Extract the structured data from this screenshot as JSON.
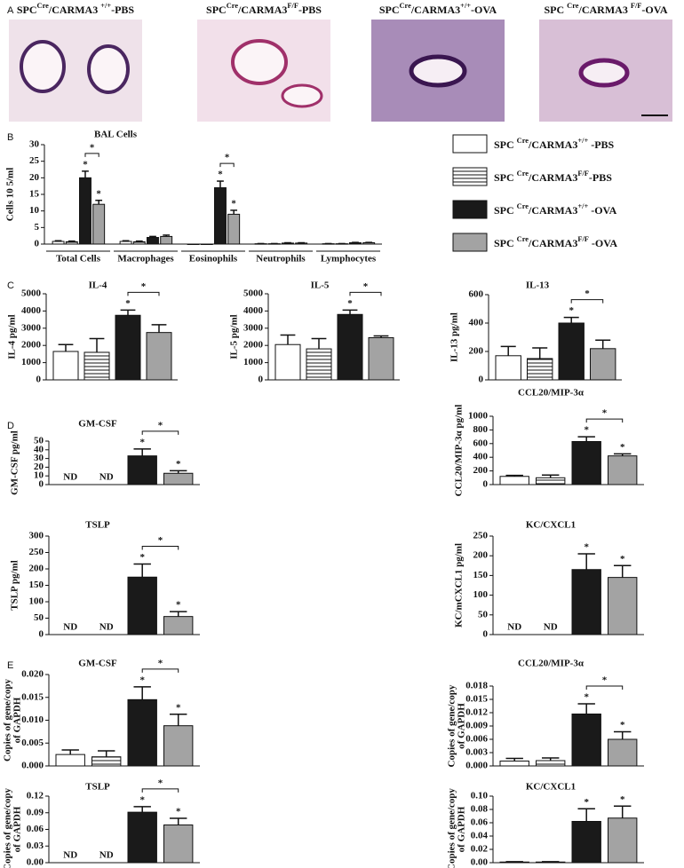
{
  "panels": [
    "A",
    "B",
    "C",
    "D",
    "E"
  ],
  "images": [
    {
      "caption_parts": [
        "SPC",
        "Cre",
        "/CARMA3 ",
        "+/+",
        "-PBS"
      ]
    },
    {
      "caption_parts": [
        "SPC",
        "Cre",
        "/CARMA3",
        "F/F",
        "-PBS"
      ]
    },
    {
      "caption_parts": [
        "SPC",
        "Cre",
        "/CARMA3",
        "+/+",
        "-OVA"
      ]
    },
    {
      "caption_parts": [
        "SPC ",
        "Cre",
        "/CARMA3 ",
        "F/F",
        "-OVA"
      ]
    }
  ],
  "legend": [
    {
      "name_parts": [
        "SPC ",
        "Cre",
        "/CARMA3",
        "+/+",
        " -PBS"
      ],
      "color": "#ffffff"
    },
    {
      "name_parts": [
        "SPC ",
        "Cre",
        "/CARMA3",
        "F/F",
        "-PBS"
      ],
      "color": "#ffffff",
      "hatch": true
    },
    {
      "name_parts": [
        "SPC ",
        "Cre",
        "/CARMA3",
        "+/+",
        " -OVA"
      ],
      "color": "#1a1a1a"
    },
    {
      "name_parts": [
        "SPC ",
        "Cre",
        "/CARMA3",
        "F/F",
        " -OVA"
      ],
      "color": "#a3a3a3"
    }
  ],
  "chart_data": [
    {
      "type": "bar",
      "title": "BAL Cells",
      "ylabel": [
        "Cells 10 5/ml"
      ],
      "categories": [
        "Total Cells",
        "Macrophages",
        "Eosinophils",
        "Neutrophils",
        "Lymphocytes"
      ],
      "ylim": [
        0,
        30
      ],
      "yticks": [
        0,
        5,
        10,
        15,
        20,
        25,
        30
      ],
      "series": [
        {
          "values": [
            0.8,
            0.8,
            0,
            0.1,
            0.1
          ],
          "errors": [
            0.2,
            0.2,
            null,
            0.05,
            0.05
          ]
        },
        {
          "values": [
            0.7,
            0.7,
            0,
            0.1,
            0.1
          ],
          "errors": [
            0.2,
            0.2,
            null,
            0.05,
            0.05
          ]
        },
        {
          "values": [
            20,
            2,
            17,
            0.3,
            0.4
          ],
          "errors": [
            2,
            0.3,
            2,
            0.1,
            0.1
          ],
          "value_labels": [
            "*",
            null,
            "*",
            null,
            null
          ]
        },
        {
          "values": [
            12,
            2.3,
            9,
            0.3,
            0.4
          ],
          "errors": [
            1.2,
            0.4,
            1.2,
            0.1,
            0.1
          ],
          "value_labels": [
            "*",
            null,
            "*",
            null,
            null
          ]
        }
      ],
      "comparisons": [
        "*",
        null,
        "*",
        null,
        null
      ]
    },
    {
      "type": "bar",
      "title": "IL-4",
      "ylabel": [
        "IL-4 pg/ml"
      ],
      "ylim": [
        0,
        5000
      ],
      "yticks": [
        0,
        1000,
        2000,
        3000,
        4000,
        5000
      ],
      "values": [
        1650,
        1600,
        3750,
        2750
      ],
      "errors": [
        400,
        800,
        300,
        450
      ],
      "value_labels": [
        null,
        null,
        "*",
        null
      ],
      "comparison": "*"
    },
    {
      "type": "bar",
      "title": "IL-5",
      "ylabel": [
        "IL-5 pg/ml"
      ],
      "ylim": [
        0,
        5000
      ],
      "yticks": [
        0,
        1000,
        2000,
        3000,
        4000,
        5000
      ],
      "values": [
        2050,
        1800,
        3800,
        2450
      ],
      "errors": [
        550,
        600,
        250,
        100
      ],
      "value_labels": [
        null,
        null,
        "*",
        null
      ],
      "comparison": "*"
    },
    {
      "type": "bar",
      "title": "IL-13",
      "ylabel": [
        "IL-13 pg/ml"
      ],
      "ylim": [
        0,
        600
      ],
      "yticks": [
        0,
        200,
        400,
        600
      ],
      "values": [
        170,
        150,
        400,
        220
      ],
      "errors": [
        65,
        75,
        40,
        60
      ],
      "value_labels": [
        null,
        null,
        "*",
        null
      ],
      "comparison": "*"
    },
    {
      "type": "bar",
      "title": "GM-CSF",
      "ylabel": [
        "GM-CSF pg/ml"
      ],
      "ylim": [
        0,
        50
      ],
      "yticks": [
        0,
        10,
        20,
        30,
        40,
        50
      ],
      "values": [
        null,
        null,
        33,
        13
      ],
      "errors": [
        null,
        null,
        8,
        3
      ],
      "value_labels": [
        "ND",
        "ND",
        "*",
        "*"
      ],
      "comparison": "*"
    },
    {
      "type": "bar",
      "title": "CCL20/MIP-3α",
      "ylabel": [
        "CCL20/MIP-3α pg/ml"
      ],
      "ylim": [
        0,
        1000
      ],
      "yticks": [
        0,
        200,
        400,
        600,
        800,
        1000
      ],
      "values": [
        120,
        100,
        630,
        420
      ],
      "errors": [
        15,
        40,
        70,
        30
      ],
      "value_labels": [
        null,
        null,
        "*",
        "*"
      ],
      "comparison": "*"
    },
    {
      "type": "bar",
      "title": "TSLP",
      "ylabel": [
        "TSLP pg/ml"
      ],
      "ylim": [
        0,
        300
      ],
      "yticks": [
        0,
        50,
        100,
        150,
        200,
        250,
        300
      ],
      "values": [
        null,
        null,
        175,
        55
      ],
      "errors": [
        null,
        null,
        40,
        15
      ],
      "value_labels": [
        "ND",
        "ND",
        "*",
        "*"
      ],
      "comparison": "*"
    },
    {
      "type": "bar",
      "title": "KC/CXCL1",
      "ylabel": [
        "KC/mCXCL1 pg/ml"
      ],
      "ylim": [
        0,
        250
      ],
      "yticks": [
        0,
        50,
        100,
        150,
        200,
        250
      ],
      "values": [
        null,
        null,
        165,
        145
      ],
      "errors": [
        null,
        null,
        40,
        30
      ],
      "value_labels": [
        "ND",
        "ND",
        "*",
        "*"
      ]
    },
    {
      "type": "bar",
      "title": "GM-CSF",
      "ylabel": [
        "Copies of gene/copy",
        "of GAPDH"
      ],
      "ylim": [
        0,
        0.02
      ],
      "yticks": [
        {
          "value": 0,
          "label": "0.000"
        },
        0.005,
        {
          "value": 0.01,
          "label": "0.010"
        },
        0.015,
        {
          "value": 0.02,
          "label": "0.020"
        }
      ],
      "values": [
        0.0025,
        0.002,
        0.0145,
        0.0088
      ],
      "errors": [
        0.001,
        0.0013,
        0.0028,
        0.0025
      ],
      "value_labels": [
        null,
        null,
        "*",
        "*"
      ],
      "comparison": "*"
    },
    {
      "type": "bar",
      "title": "CCL20/MIP-3α",
      "ylabel": [
        "Copies of gene/copy",
        "of GAPDH"
      ],
      "ylim": [
        0,
        0.018
      ],
      "yticks": [
        {
          "value": 0,
          "label": "0.000"
        },
        0.003,
        0.006,
        0.009,
        0.012,
        0.015,
        0.018
      ],
      "values": [
        0.0011,
        0.0012,
        0.0117,
        0.006
      ],
      "errors": [
        0.0006,
        0.0006,
        0.0023,
        0.0017
      ],
      "value_labels": [
        null,
        null,
        "*",
        "*"
      ],
      "comparison": "*"
    },
    {
      "type": "bar",
      "title": "TSLP",
      "ylabel": [
        "Copies of gene/copy",
        "of GAPDH"
      ],
      "ylim": [
        0,
        0.12
      ],
      "yticks": [
        {
          "value": 0,
          "label": "0.00"
        },
        0.03,
        0.06,
        0.09,
        0.12
      ],
      "values": [
        null,
        null,
        0.091,
        0.068
      ],
      "errors": [
        null,
        null,
        0.01,
        0.012
      ],
      "value_labels": [
        "ND",
        "ND",
        "*",
        "*"
      ],
      "comparison": "*"
    },
    {
      "type": "bar",
      "title": "KC/CXCL1",
      "ylabel": [
        "Copies of gene/copy",
        "of GAPDH"
      ],
      "ylim": [
        0,
        0.1
      ],
      "yticks": [
        {
          "value": 0,
          "label": "0.00"
        },
        0.02,
        0.04,
        0.06,
        0.08,
        {
          "value": 0.1,
          "label": "0.10"
        }
      ],
      "values": [
        0.001,
        0.001,
        0.062,
        0.067
      ],
      "errors": [
        0.0005,
        0.0005,
        0.019,
        0.018
      ],
      "value_labels": [
        null,
        null,
        "*",
        "*"
      ]
    }
  ]
}
